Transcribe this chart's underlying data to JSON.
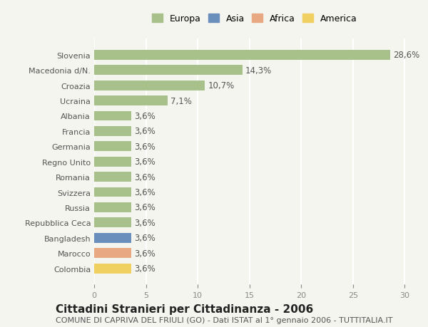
{
  "categories": [
    "Slovenia",
    "Macedonia d/N.",
    "Croazia",
    "Ucraina",
    "Albania",
    "Francia",
    "Germania",
    "Regno Unito",
    "Romania",
    "Svizzera",
    "Russia",
    "Repubblica Ceca",
    "Bangladesh",
    "Marocco",
    "Colombia"
  ],
  "values": [
    28.6,
    14.3,
    10.7,
    7.1,
    3.6,
    3.6,
    3.6,
    3.6,
    3.6,
    3.6,
    3.6,
    3.6,
    3.6,
    3.6,
    3.6
  ],
  "labels": [
    "28,6%",
    "14,3%",
    "10,7%",
    "7,1%",
    "3,6%",
    "3,6%",
    "3,6%",
    "3,6%",
    "3,6%",
    "3,6%",
    "3,6%",
    "3,6%",
    "3,6%",
    "3,6%",
    "3,6%"
  ],
  "colors": [
    "#a8c08a",
    "#a8c08a",
    "#a8c08a",
    "#a8c08a",
    "#a8c08a",
    "#a8c08a",
    "#a8c08a",
    "#a8c08a",
    "#a8c08a",
    "#a8c08a",
    "#a8c08a",
    "#a8c08a",
    "#6b8fbd",
    "#e8a882",
    "#f0d060"
  ],
  "legend": [
    {
      "label": "Europa",
      "color": "#a8c08a"
    },
    {
      "label": "Asia",
      "color": "#6b8fbd"
    },
    {
      "label": "Africa",
      "color": "#e8a882"
    },
    {
      "label": "America",
      "color": "#f0d060"
    }
  ],
  "xlim": [
    0,
    31
  ],
  "xticks": [
    0,
    5,
    10,
    15,
    20,
    25,
    30
  ],
  "title": "Cittadini Stranieri per Cittadinanza - 2006",
  "subtitle": "COMUNE DI CAPRIVA DEL FRIULI (GO) - Dati ISTAT al 1° gennaio 2006 - TUTTITALIA.IT",
  "background_color": "#f5f5f0",
  "grid_color": "#ffffff",
  "bar_height": 0.65,
  "title_fontsize": 11,
  "subtitle_fontsize": 8,
  "label_fontsize": 8.5,
  "tick_fontsize": 8,
  "legend_fontsize": 9
}
